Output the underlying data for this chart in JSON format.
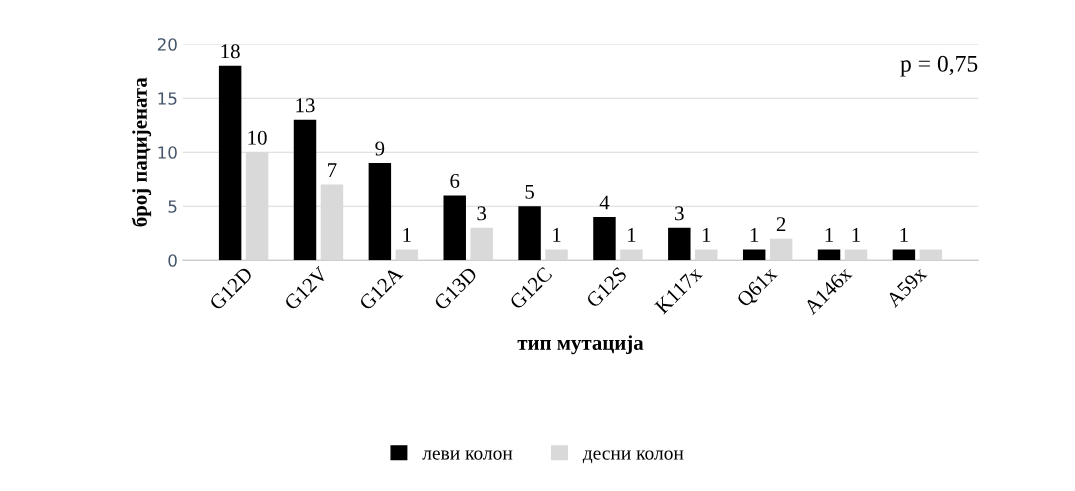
{
  "chart_data": {
    "type": "bar",
    "xlabel": "тип мутација",
    "ylabel": "број пацијената",
    "categories": [
      "G12D",
      "G12V",
      "G12A",
      "G13D",
      "G12C",
      "G12S",
      "K117x",
      "Q61x",
      "A146x",
      "A59x"
    ],
    "series": [
      {
        "name": "леви колон",
        "color": "#000000",
        "values": [
          18,
          13,
          9,
          6,
          5,
          4,
          3,
          1,
          1,
          1
        ],
        "value_labels": [
          "18",
          "13",
          "9",
          "6",
          "5",
          "4",
          "3",
          "1",
          "1",
          "1"
        ]
      },
      {
        "name": "десни колон",
        "color": "#d9d9d9",
        "values": [
          10,
          7,
          1,
          3,
          1,
          1,
          1,
          2,
          1,
          1
        ],
        "value_labels": [
          "10",
          "7",
          "1",
          "3",
          "1",
          "1",
          "1",
          "2",
          "1",
          null
        ]
      }
    ],
    "ylim": [
      0,
      20
    ],
    "yticks": [
      0,
      5,
      10,
      15,
      20
    ],
    "grid": "y",
    "legend": "bottom",
    "annotations": [
      "p = 0,75"
    ]
  }
}
